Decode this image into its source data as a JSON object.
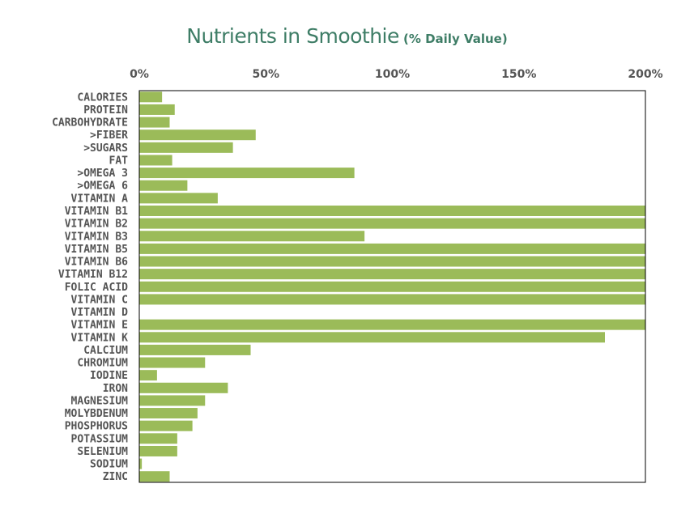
{
  "chart_data": {
    "type": "bar",
    "orientation": "horizontal",
    "title": "Nutrients in Smoothie",
    "subtitle": "(% Daily Value)",
    "xlabel": "",
    "ylabel": "",
    "xlim": [
      0,
      200
    ],
    "xticks": [
      0,
      50,
      100,
      150,
      200
    ],
    "xtick_labels": [
      "0%",
      "50%",
      "100%",
      "150%",
      "200%"
    ],
    "xaxis_position": "top",
    "grid": false,
    "bar_color": "#9bbb59",
    "title_color": "#3e7d66",
    "categories": [
      "CALORIES",
      "PROTEIN",
      "CARBOHYDRATE",
      ">FIBER",
      ">SUGARS",
      "FAT",
      ">OMEGA 3",
      ">OMEGA 6",
      "VITAMIN A",
      "VITAMIN B1",
      "VITAMIN B2",
      "VITAMIN B3",
      "VITAMIN B5",
      "VITAMIN B6",
      "VITAMIN B12",
      "FOLIC ACID",
      "VITAMIN C",
      "VITAMIN D",
      "VITAMIN E",
      "VITAMIN K",
      "CALCIUM",
      "CHROMIUM",
      "IODINE",
      "IRON",
      "MAGNESIUM",
      "MOLYBDENUM",
      "PHOSPHORUS",
      "POTASSIUM",
      "SELENIUM",
      "SODIUM",
      "ZINC"
    ],
    "values": [
      9,
      14,
      12,
      46,
      37,
      13,
      85,
      19,
      31,
      200,
      200,
      89,
      200,
      200,
      200,
      200,
      200,
      0,
      200,
      184,
      44,
      26,
      7,
      35,
      26,
      23,
      21,
      15,
      15,
      1,
      12
    ]
  }
}
